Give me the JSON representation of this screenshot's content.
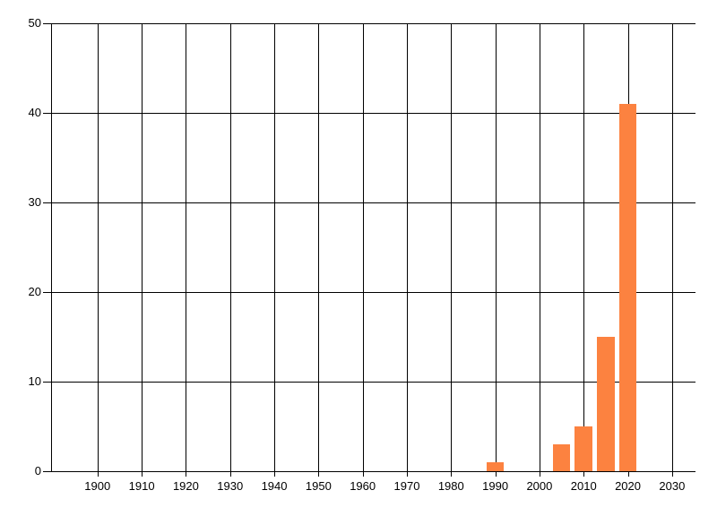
{
  "chart_data": {
    "type": "bar",
    "x": [
      1990,
      2005,
      2010,
      2015,
      2020
    ],
    "values": [
      1,
      3,
      5,
      15,
      41
    ],
    "bar_width_years": 4,
    "x_ticks": [
      1900,
      1910,
      1920,
      1930,
      1940,
      1950,
      1960,
      1970,
      1980,
      1990,
      2000,
      2010,
      2020,
      2030
    ],
    "y_ticks": [
      0,
      10,
      20,
      30,
      40,
      50
    ],
    "xlim": [
      1889.5,
      2035.3
    ],
    "ylim": [
      0,
      50
    ],
    "grid": true,
    "legend": false,
    "title": "",
    "xlabel": "",
    "ylabel": "",
    "colors": {
      "bar": "#FC8240",
      "grid": "#000000",
      "axis": "#000000",
      "text": "#000000",
      "background": "#FFFFFF"
    }
  }
}
